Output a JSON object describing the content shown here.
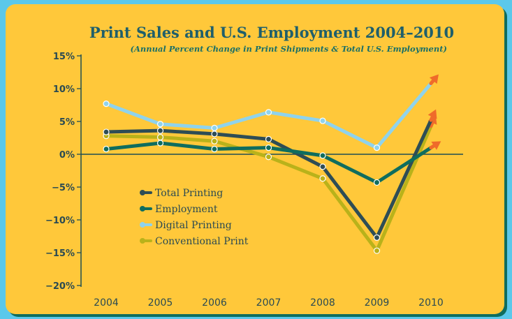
{
  "chart_data": {
    "type": "line",
    "title": "Print Sales and U.S. Employment 2004–2010",
    "subtitle": "(Annual Percent Change in Print Shipments & Total U.S. Employment)",
    "x": [
      "2004",
      "2005",
      "2006",
      "2007",
      "2008",
      "2009",
      "2010"
    ],
    "y_tick_labels": [
      "15%",
      "10%",
      "5%",
      "0%",
      "−5%",
      "−10%",
      "−15%",
      "−20%"
    ],
    "ylim": [
      -20,
      15
    ],
    "y_ticks": [
      15,
      10,
      5,
      0,
      -5,
      -10,
      -15,
      -20
    ],
    "grid": false,
    "legend_position": "lower-left",
    "arrow_color": "#ef6b2a",
    "series": [
      {
        "name": "Digital Printing",
        "color": "#8fd3ec",
        "values": [
          7.7,
          4.6,
          4.0,
          6.4,
          5.1,
          1.0,
          10.8
        ]
      },
      {
        "name": "Conventional Print",
        "color": "#b9b21a",
        "values": [
          2.8,
          2.6,
          2.0,
          -0.4,
          -3.7,
          -14.7,
          4.3
        ]
      },
      {
        "name": "Total Printing",
        "color": "#2e4d55",
        "values": [
          3.4,
          3.6,
          3.1,
          2.3,
          -1.9,
          -12.7,
          5.2
        ]
      },
      {
        "name": "Employment",
        "color": "#0f6d5e",
        "values": [
          0.8,
          1.7,
          0.8,
          1.0,
          -0.2,
          -4.3,
          1.0
        ]
      }
    ],
    "legend_order": [
      "Total Printing",
      "Employment",
      "Digital Printing",
      "Conventional Print"
    ]
  }
}
